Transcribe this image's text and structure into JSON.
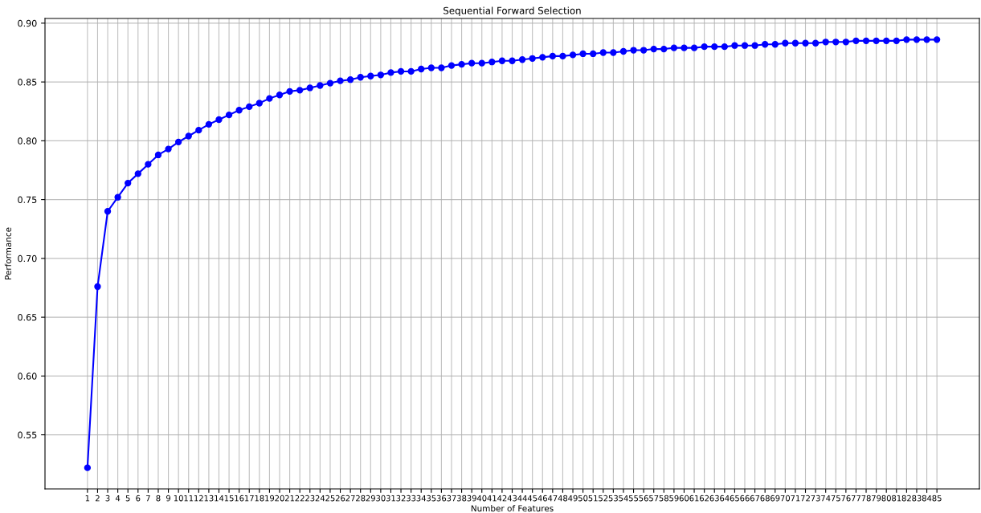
{
  "chart_data": {
    "type": "line",
    "title": "Sequential Forward Selection",
    "xlabel": "Number of Features",
    "ylabel": "Performance",
    "x": [
      1,
      2,
      3,
      4,
      5,
      6,
      7,
      8,
      9,
      10,
      11,
      12,
      13,
      14,
      15,
      16,
      17,
      18,
      19,
      20,
      21,
      22,
      23,
      24,
      25,
      26,
      27,
      28,
      29,
      30,
      31,
      32,
      33,
      34,
      35,
      36,
      37,
      38,
      39,
      40,
      41,
      42,
      43,
      44,
      45,
      46,
      47,
      48,
      49,
      50,
      51,
      52,
      53,
      54,
      55,
      56,
      57,
      58,
      59,
      60,
      61,
      62,
      63,
      64,
      65,
      66,
      67,
      68,
      69,
      70,
      71,
      72,
      73,
      74,
      75,
      76,
      77,
      78,
      79,
      80,
      81,
      82,
      83,
      84,
      85
    ],
    "series": [
      {
        "color": "#0000ff",
        "values": [
          0.522,
          0.676,
          0.74,
          0.752,
          0.764,
          0.772,
          0.78,
          0.788,
          0.793,
          0.799,
          0.804,
          0.809,
          0.814,
          0.818,
          0.822,
          0.826,
          0.829,
          0.832,
          0.836,
          0.839,
          0.842,
          0.843,
          0.845,
          0.847,
          0.849,
          0.851,
          0.852,
          0.854,
          0.855,
          0.856,
          0.858,
          0.859,
          0.859,
          0.861,
          0.862,
          0.862,
          0.864,
          0.865,
          0.866,
          0.866,
          0.867,
          0.868,
          0.868,
          0.869,
          0.87,
          0.871,
          0.872,
          0.872,
          0.873,
          0.874,
          0.874,
          0.875,
          0.875,
          0.876,
          0.877,
          0.877,
          0.878,
          0.878,
          0.879,
          0.879,
          0.879,
          0.88,
          0.88,
          0.88,
          0.881,
          0.881,
          0.881,
          0.882,
          0.882,
          0.883,
          0.883,
          0.883,
          0.883,
          0.884,
          0.884,
          0.884,
          0.885,
          0.885,
          0.885,
          0.885,
          0.885,
          0.886,
          0.886,
          0.886,
          0.886
        ]
      }
    ],
    "xlim": [
      -3.2,
      89.2
    ],
    "xticks": [
      1,
      2,
      3,
      4,
      5,
      6,
      7,
      8,
      9,
      10,
      11,
      12,
      13,
      14,
      15,
      16,
      17,
      18,
      19,
      20,
      21,
      22,
      23,
      24,
      25,
      26,
      27,
      28,
      29,
      30,
      31,
      32,
      33,
      34,
      35,
      36,
      37,
      38,
      39,
      40,
      41,
      42,
      43,
      44,
      45,
      46,
      47,
      48,
      49,
      50,
      51,
      52,
      53,
      54,
      55,
      56,
      57,
      58,
      59,
      60,
      61,
      62,
      63,
      64,
      65,
      66,
      67,
      68,
      69,
      70,
      71,
      72,
      73,
      74,
      75,
      76,
      77,
      78,
      79,
      80,
      81,
      82,
      83,
      84,
      85
    ],
    "ylim": [
      0.504,
      0.904
    ],
    "yticks": [
      0.55,
      {
        "value": 0.6,
        "label": "0.60"
      },
      0.65,
      {
        "value": 0.7,
        "label": "0.70"
      },
      0.75,
      {
        "value": 0.8,
        "label": "0.80"
      },
      0.85,
      {
        "value": 0.9,
        "label": "0.90"
      }
    ],
    "grid": true,
    "marker": "circle",
    "line_style": "solid"
  }
}
